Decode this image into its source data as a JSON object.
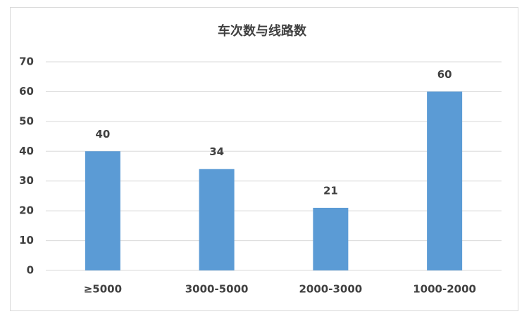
{
  "chart_data": {
    "type": "bar",
    "title": "车次数与线路数",
    "categories": [
      "≥5000",
      "3000-5000",
      "2000-3000",
      "1000-2000"
    ],
    "values": [
      40,
      34,
      21,
      60
    ],
    "color": "#5b9bd5",
    "ylim": [
      0,
      70
    ],
    "yticks": [
      0,
      10,
      20,
      30,
      40,
      50,
      60,
      70
    ],
    "grid": true,
    "data_labels": true
  }
}
